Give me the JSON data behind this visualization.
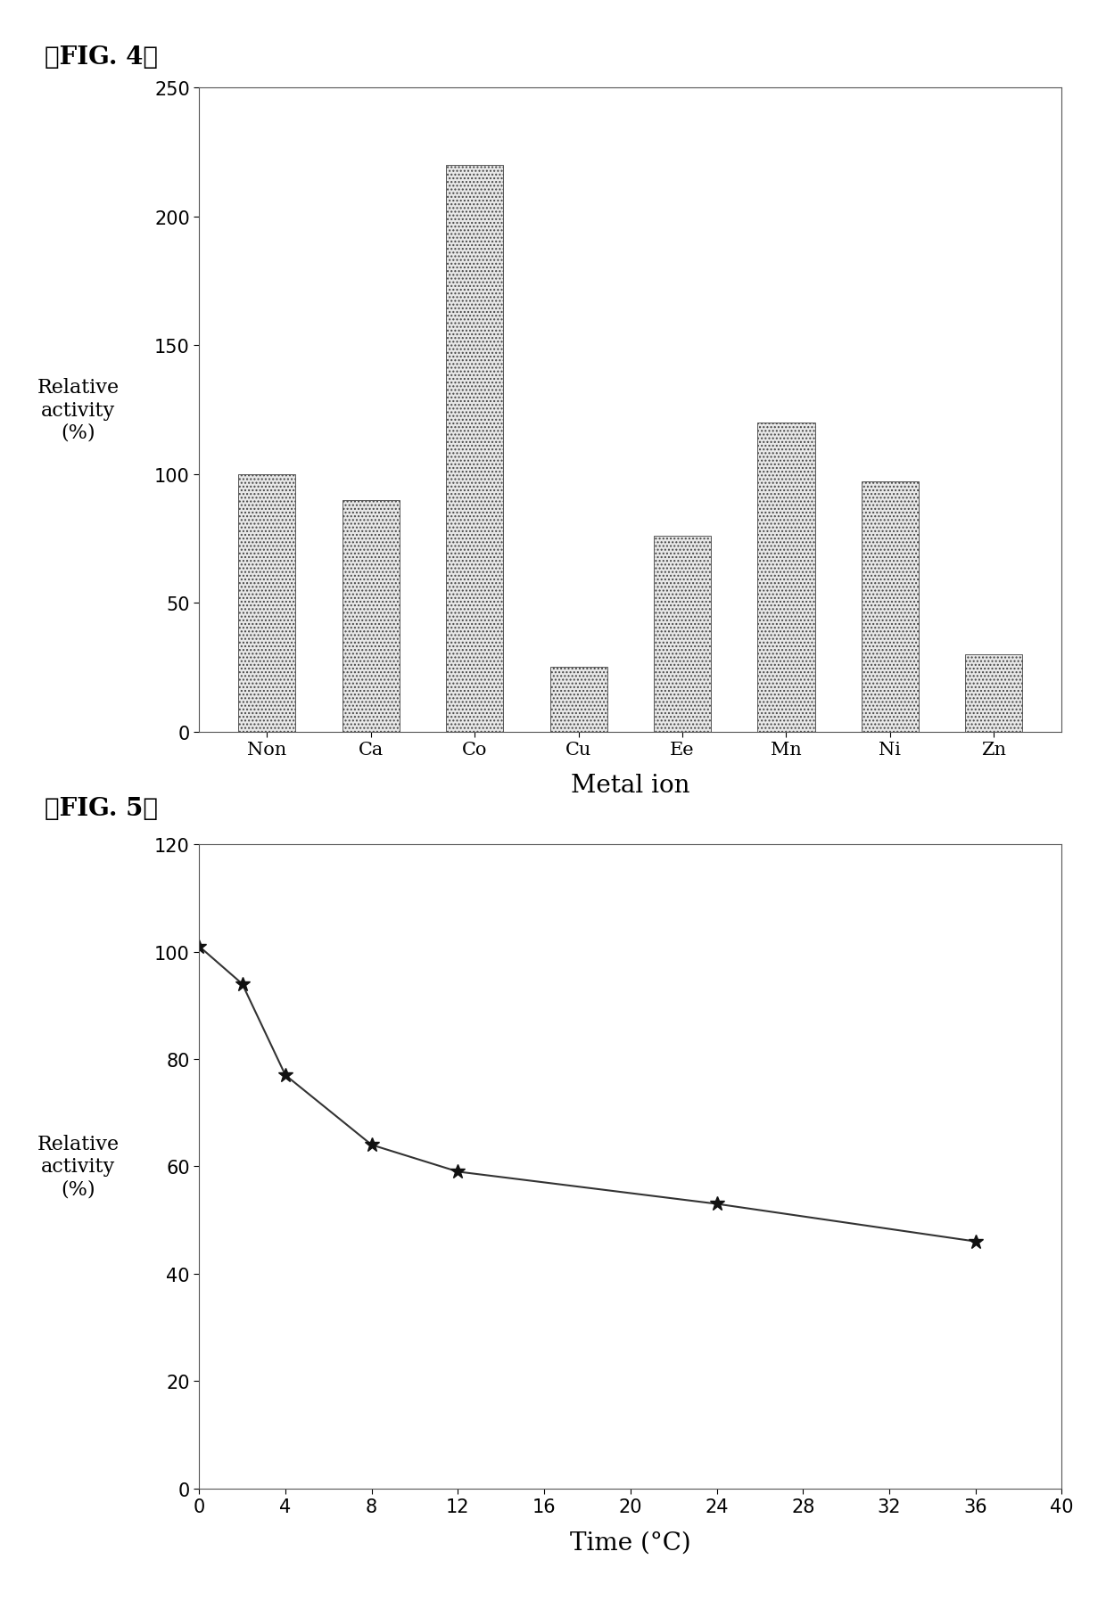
{
  "fig4": {
    "label": "【FIG. 4】",
    "categories": [
      "Non",
      "Ca",
      "Co",
      "Cu",
      "Ee",
      "Mn",
      "Ni",
      "Zn"
    ],
    "values": [
      100,
      90,
      220,
      25,
      76,
      120,
      97,
      30
    ],
    "bar_color": "#e8e8e8",
    "bar_edge_color": "#444444",
    "bar_hatch": "....",
    "xlabel": "Metal ion",
    "ylabel": "Relative\nactivity\n(%)",
    "ylim": [
      0,
      250
    ],
    "yticks": [
      0,
      50,
      100,
      150,
      200,
      250
    ],
    "xlabel_fontsize": 20,
    "ylabel_fontsize": 16,
    "tick_fontsize": 15,
    "label_fontsize": 20
  },
  "fig5": {
    "label": "【FIG. 5】",
    "x": [
      0,
      2,
      4,
      8,
      12,
      24,
      36
    ],
    "y": [
      101,
      94,
      77,
      64,
      59,
      53,
      46
    ],
    "line_color": "#333333",
    "marker": "*",
    "marker_color": "#111111",
    "marker_size": 12,
    "xlabel": "Time (°C)",
    "ylabel": "Relative\nactivity\n(%)",
    "xlim": [
      0,
      40
    ],
    "ylim": [
      0,
      120
    ],
    "xticks": [
      0,
      4,
      8,
      12,
      16,
      20,
      24,
      28,
      32,
      36,
      40
    ],
    "yticks": [
      0,
      20,
      40,
      60,
      80,
      100,
      120
    ],
    "xlabel_fontsize": 20,
    "ylabel_fontsize": 16,
    "tick_fontsize": 15,
    "label_fontsize": 20
  },
  "bg_color": "#ffffff"
}
